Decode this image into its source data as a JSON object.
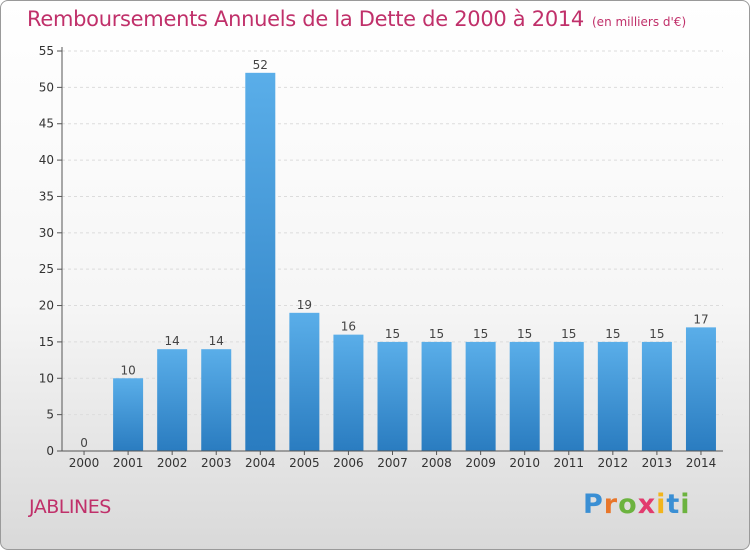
{
  "title": "Remboursements Annuels de la Dette de 2000 à 2014",
  "unit_label": "(en milliers d'€)",
  "commune": "JABLINES",
  "logo": {
    "text": "Proxiti",
    "letters": [
      {
        "ch": "P",
        "color": "#3a8fd4"
      },
      {
        "ch": "r",
        "color": "#e8762a"
      },
      {
        "ch": "o",
        "color": "#6cb33f"
      },
      {
        "ch": "x",
        "color": "#e23b6e"
      },
      {
        "ch": "i",
        "color": "#f2b51c"
      },
      {
        "ch": "t",
        "color": "#3a8fd4"
      },
      {
        "ch": "i",
        "color": "#6cb33f"
      }
    ]
  },
  "colors": {
    "accent": "#c0306a",
    "bar_top": "#5aaee9",
    "bar_bottom": "#2a7cc0",
    "grid": "#dcdcdc",
    "axis": "#555555"
  },
  "chart_data": {
    "type": "bar",
    "title": "Remboursements Annuels de la Dette de 2000 à 2014",
    "categories": [
      "2000",
      "2001",
      "2002",
      "2003",
      "2004",
      "2005",
      "2006",
      "2007",
      "2008",
      "2009",
      "2010",
      "2011",
      "2012",
      "2013",
      "2014"
    ],
    "values": [
      0,
      10,
      14,
      14,
      52,
      19,
      16,
      15,
      15,
      15,
      15,
      15,
      15,
      15,
      17
    ],
    "data_labels": [
      "0",
      "10",
      "14",
      "14",
      "52",
      "19",
      "16",
      "15",
      "15",
      "15",
      "15",
      "15",
      "15",
      "15",
      "17"
    ],
    "ylim": [
      0,
      55
    ],
    "yticks": [
      0,
      5,
      10,
      15,
      20,
      25,
      30,
      35,
      40,
      45,
      50,
      55
    ],
    "ytick_labels": [
      "0",
      "5",
      "10",
      "15",
      "20",
      "25",
      "30",
      "35",
      "40",
      "45",
      "50",
      "55"
    ],
    "grid": true,
    "xlabel": "",
    "ylabel": ""
  }
}
